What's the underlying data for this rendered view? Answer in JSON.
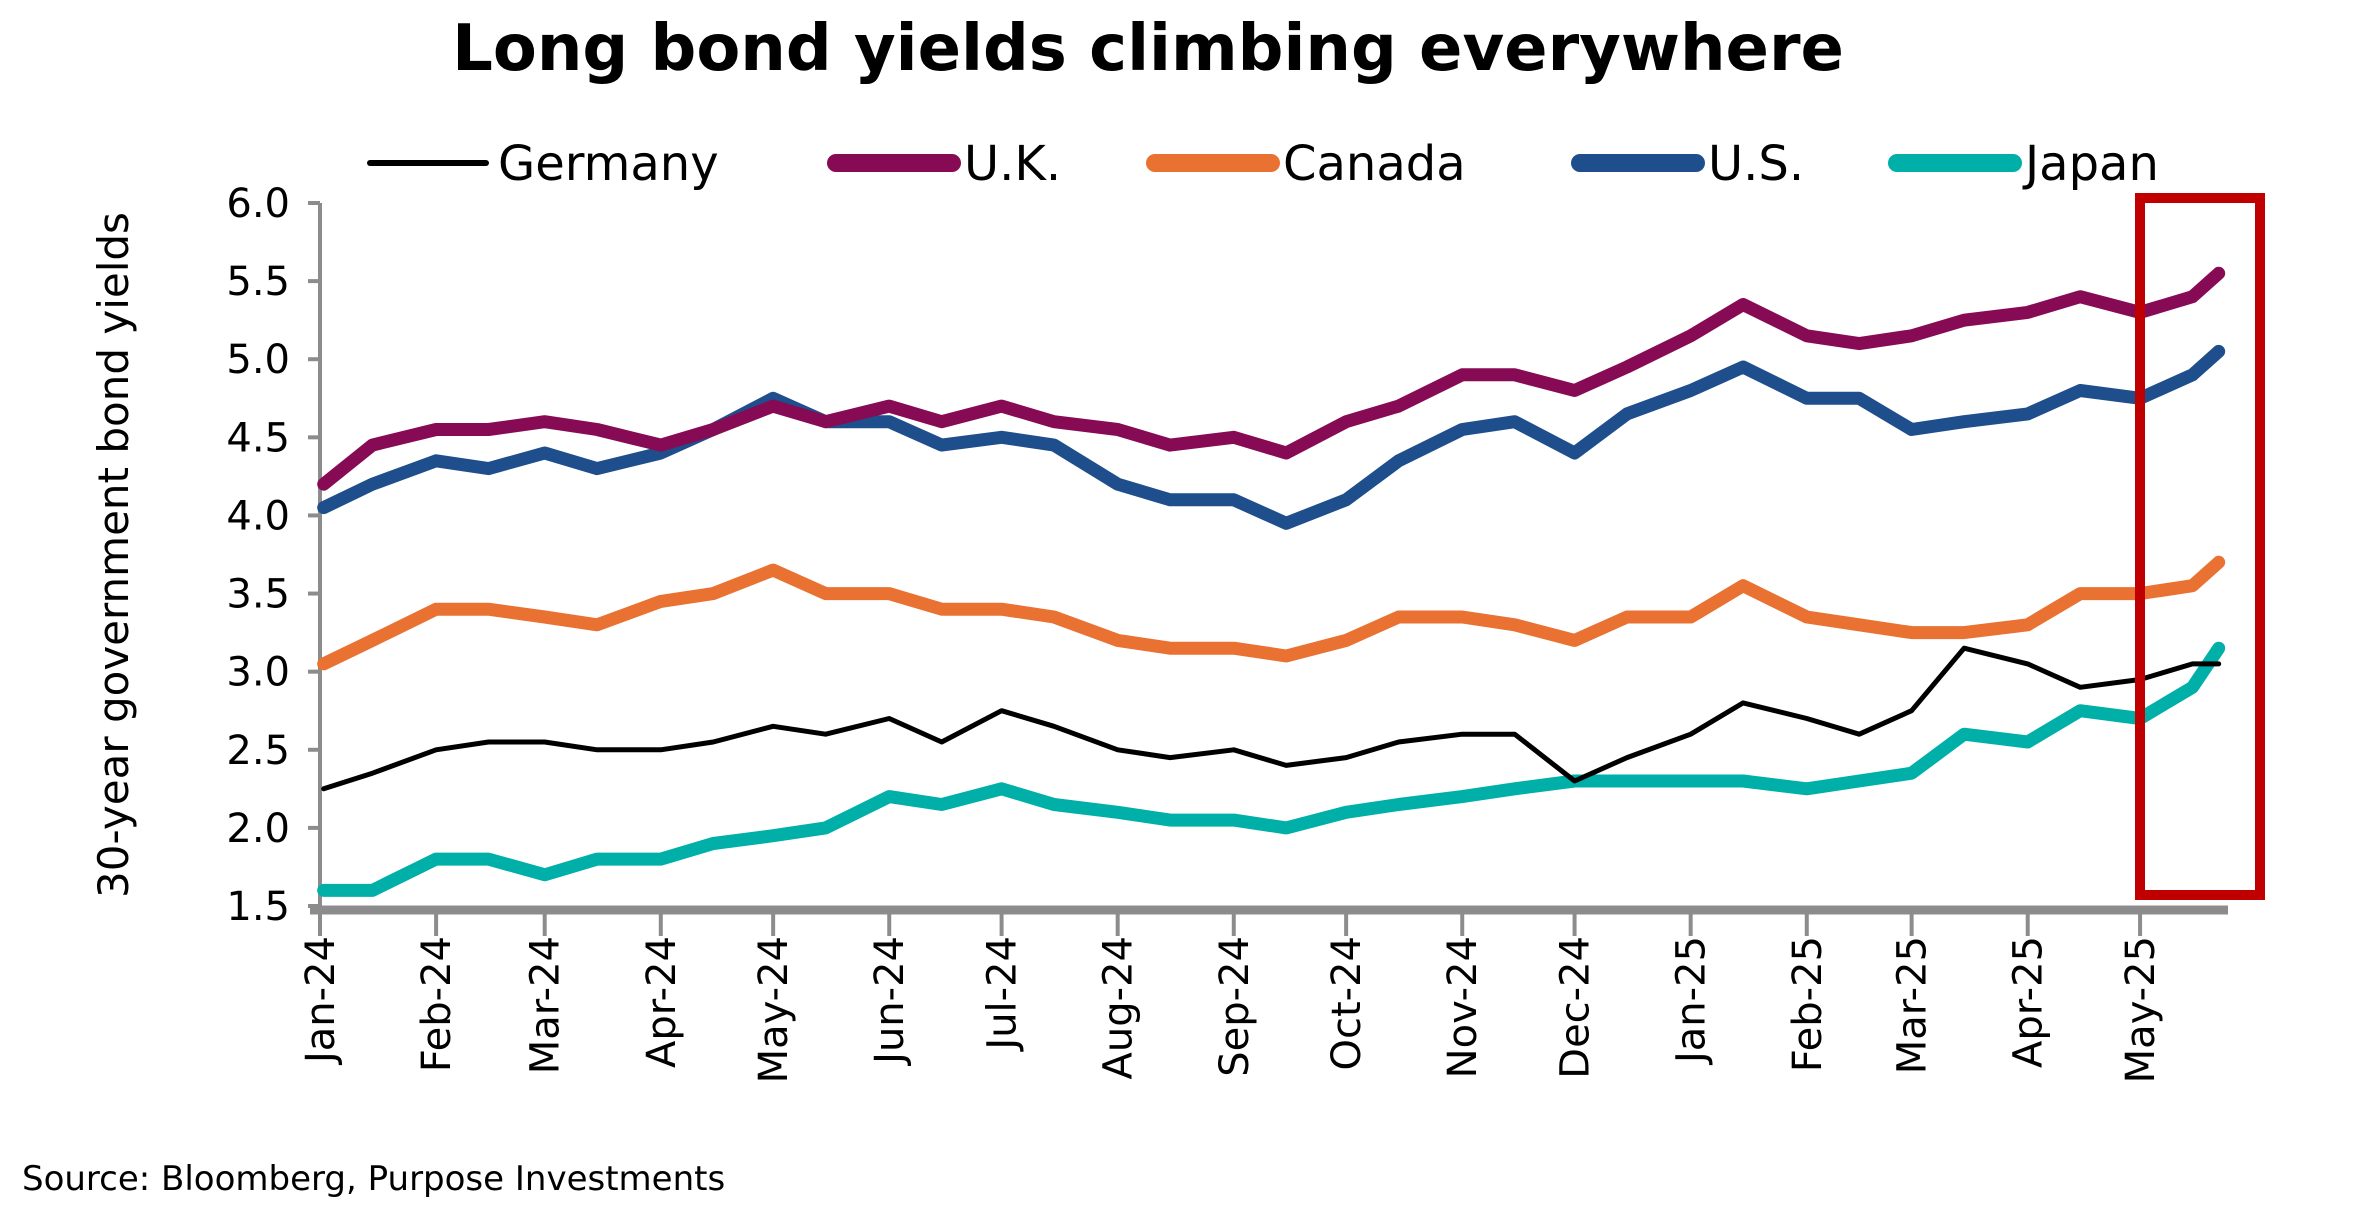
{
  "chart_data": {
    "type": "line",
    "title": "Long bond yields climbing everywhere",
    "ylabel": "30-year government bond yields",
    "xlabel": "",
    "ylim": [
      1.5,
      6.0
    ],
    "yticks": [
      "1.5",
      "2.0",
      "2.5",
      "3.0",
      "3.5",
      "4.0",
      "4.5",
      "5.0",
      "5.5",
      "6.0"
    ],
    "xticks": [
      {
        "date": "2024-01-01",
        "label": "Jan-24"
      },
      {
        "date": "2024-02-01",
        "label": "Feb-24"
      },
      {
        "date": "2024-03-01",
        "label": "Mar-24"
      },
      {
        "date": "2024-04-01",
        "label": "Apr-24"
      },
      {
        "date": "2024-05-01",
        "label": "May-24"
      },
      {
        "date": "2024-06-01",
        "label": "Jun-24"
      },
      {
        "date": "2024-07-01",
        "label": "Jul-24"
      },
      {
        "date": "2024-08-01",
        "label": "Aug-24"
      },
      {
        "date": "2024-09-01",
        "label": "Sep-24"
      },
      {
        "date": "2024-10-01",
        "label": "Oct-24"
      },
      {
        "date": "2024-11-01",
        "label": "Nov-24"
      },
      {
        "date": "2024-12-01",
        "label": "Dec-24"
      },
      {
        "date": "2025-01-01",
        "label": "Jan-25"
      },
      {
        "date": "2025-02-01",
        "label": "Feb-25"
      },
      {
        "date": "2025-03-01",
        "label": "Mar-25"
      },
      {
        "date": "2025-04-01",
        "label": "Apr-25"
      },
      {
        "date": "2025-05-01",
        "label": "May-25"
      }
    ],
    "grid": false,
    "legend": "top",
    "x": [
      "2024-01-02",
      "2024-01-15",
      "2024-02-01",
      "2024-02-15",
      "2024-03-01",
      "2024-03-15",
      "2024-04-01",
      "2024-04-15",
      "2024-05-01",
      "2024-05-15",
      "2024-06-01",
      "2024-06-15",
      "2024-07-01",
      "2024-07-15",
      "2024-08-01",
      "2024-08-15",
      "2024-09-01",
      "2024-09-15",
      "2024-10-01",
      "2024-10-15",
      "2024-11-01",
      "2024-11-15",
      "2024-12-01",
      "2024-12-15",
      "2025-01-01",
      "2025-01-15",
      "2025-02-01",
      "2025-02-15",
      "2025-03-01",
      "2025-03-15",
      "2025-04-01",
      "2025-04-15",
      "2025-05-01",
      "2025-05-15",
      "2025-05-22"
    ],
    "series": [
      {
        "name": "Germany",
        "color": "#000000",
        "values": [
          2.25,
          2.35,
          2.5,
          2.55,
          2.55,
          2.5,
          2.5,
          2.55,
          2.65,
          2.6,
          2.7,
          2.55,
          2.75,
          2.65,
          2.5,
          2.45,
          2.5,
          2.4,
          2.45,
          2.55,
          2.6,
          2.6,
          2.3,
          2.45,
          2.6,
          2.8,
          2.7,
          2.6,
          2.75,
          3.15,
          3.05,
          2.9,
          2.95,
          3.05,
          3.05
        ]
      },
      {
        "name": "U.K.",
        "color": "#870A55",
        "values": [
          4.2,
          4.45,
          4.55,
          4.55,
          4.6,
          4.55,
          4.45,
          4.55,
          4.7,
          4.6,
          4.7,
          4.6,
          4.7,
          4.6,
          4.55,
          4.45,
          4.5,
          4.4,
          4.6,
          4.7,
          4.9,
          4.9,
          4.8,
          4.95,
          5.15,
          5.35,
          5.15,
          5.1,
          5.15,
          5.25,
          5.3,
          5.4,
          5.3,
          5.4,
          5.55
        ]
      },
      {
        "name": "Canada",
        "color": "#E97132",
        "values": [
          3.05,
          3.2,
          3.4,
          3.4,
          3.35,
          3.3,
          3.45,
          3.5,
          3.65,
          3.5,
          3.5,
          3.4,
          3.4,
          3.35,
          3.2,
          3.15,
          3.15,
          3.1,
          3.2,
          3.35,
          3.35,
          3.3,
          3.2,
          3.35,
          3.35,
          3.55,
          3.35,
          3.3,
          3.25,
          3.25,
          3.3,
          3.5,
          3.5,
          3.55,
          3.7
        ]
      },
      {
        "name": "U.S.",
        "color": "#1F4E8C",
        "values": [
          4.05,
          4.2,
          4.35,
          4.3,
          4.4,
          4.3,
          4.4,
          4.55,
          4.75,
          4.6,
          4.6,
          4.45,
          4.5,
          4.45,
          4.2,
          4.1,
          4.1,
          3.95,
          4.1,
          4.35,
          4.55,
          4.6,
          4.4,
          4.65,
          4.8,
          4.95,
          4.75,
          4.75,
          4.55,
          4.6,
          4.65,
          4.8,
          4.75,
          4.9,
          5.05
        ]
      },
      {
        "name": "Japan",
        "color": "#00B0A8",
        "values": [
          1.6,
          1.6,
          1.8,
          1.8,
          1.7,
          1.8,
          1.8,
          1.9,
          1.95,
          2.0,
          2.2,
          2.15,
          2.25,
          2.15,
          2.1,
          2.05,
          2.05,
          2.0,
          2.1,
          2.15,
          2.2,
          2.25,
          2.3,
          2.3,
          2.3,
          2.3,
          2.25,
          2.3,
          2.35,
          2.6,
          2.55,
          2.75,
          2.7,
          2.9,
          3.15
        ]
      }
    ],
    "annotations": [
      {
        "type": "highlight-box",
        "color": "#C00000",
        "from": "2025-05-01",
        "to": "2025-05-22"
      }
    ],
    "source": "Source: Bloomberg, Purpose Investments"
  }
}
